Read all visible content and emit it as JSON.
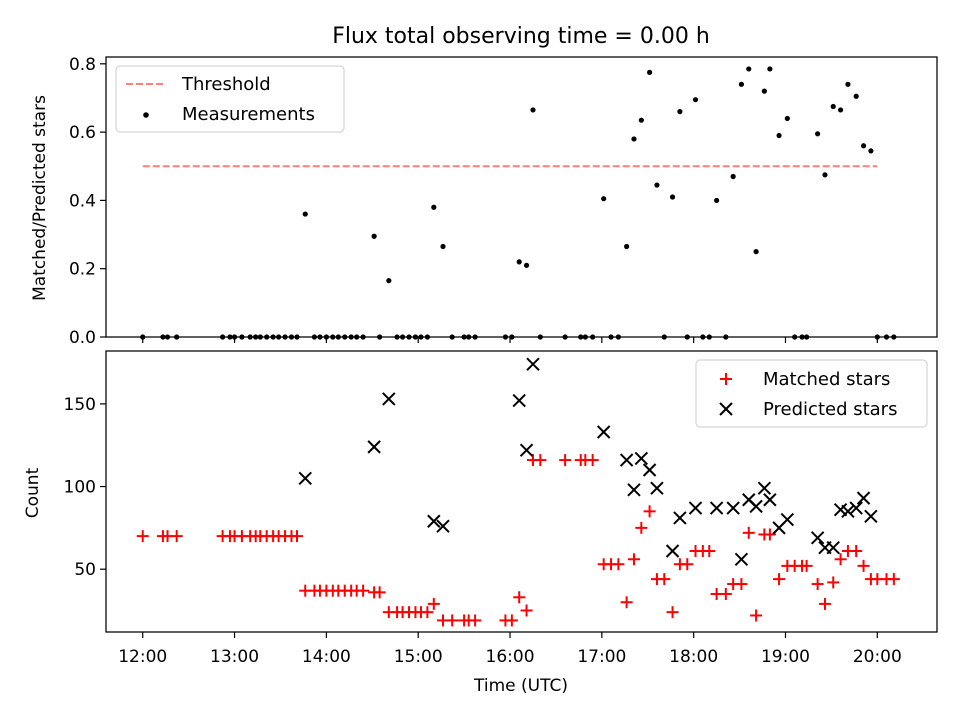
{
  "chart_data": [
    {
      "type": "scatter",
      "title": "Flux total observing time = 0.00 h",
      "xlabel": "",
      "ylabel": "Matched/Predicted stars",
      "ylim": [
        0,
        0.82
      ],
      "yticks": [
        "0.0",
        "0.2",
        "0.4",
        "0.6",
        "0.8"
      ],
      "legend_position": "top-left",
      "threshold": {
        "name": "Threshold",
        "value": 0.5,
        "x_start": 12.0,
        "x_end": 20.0,
        "color": "#ff7f7f",
        "style": "dashed"
      },
      "series": [
        {
          "name": "Measurements",
          "color": "#000000",
          "marker": "dot",
          "x": [
            12.0,
            12.22,
            12.27,
            12.37,
            12.87,
            12.95,
            13.0,
            13.08,
            13.17,
            13.23,
            13.28,
            13.35,
            13.42,
            13.48,
            13.55,
            13.62,
            13.68,
            13.77,
            13.87,
            13.93,
            14.0,
            14.07,
            14.13,
            14.2,
            14.27,
            14.33,
            14.4,
            14.52,
            14.58,
            14.68,
            14.77,
            14.83,
            14.9,
            14.97,
            15.03,
            15.1,
            15.17,
            15.27,
            15.37,
            15.5,
            15.55,
            15.62,
            15.95,
            16.02,
            16.1,
            16.18,
            16.25,
            16.33,
            16.6,
            16.77,
            16.82,
            16.9,
            17.02,
            17.1,
            17.18,
            17.27,
            17.35,
            17.43,
            17.52,
            17.6,
            17.68,
            17.77,
            17.85,
            17.93,
            18.02,
            18.1,
            18.17,
            18.25,
            18.35,
            18.43,
            18.52,
            18.6,
            18.68,
            18.77,
            18.83,
            18.93,
            19.02,
            19.1,
            19.18,
            19.23,
            19.35,
            19.43,
            19.52,
            19.6,
            19.68,
            19.77,
            19.85,
            19.93,
            20.0,
            20.1,
            20.18
          ],
          "y": [
            0,
            0,
            0,
            0,
            0,
            0,
            0,
            0,
            0,
            0,
            0,
            0,
            0,
            0,
            0,
            0,
            0,
            0.36,
            0,
            0,
            0,
            0,
            0,
            0,
            0,
            0,
            0,
            0.295,
            0,
            0.165,
            0,
            0,
            0,
            0,
            0,
            0,
            0.38,
            0.265,
            0,
            0,
            0,
            0,
            0,
            0,
            0.22,
            0.21,
            0.665,
            0,
            0,
            0,
            0,
            0,
            0.405,
            0,
            0,
            0.265,
            0.58,
            0.635,
            0.775,
            0.445,
            0,
            0.41,
            0.66,
            0,
            0.695,
            0,
            0,
            0.4,
            0,
            0.47,
            0.74,
            0.785,
            0.25,
            0.72,
            0.785,
            0.59,
            0.64,
            0,
            0,
            0,
            0.595,
            0.475,
            0.675,
            0.665,
            0.74,
            0.705,
            0.56,
            0.545,
            0,
            0,
            0
          ]
        }
      ]
    },
    {
      "type": "scatter",
      "title": "",
      "xlabel": "Time (UTC)",
      "ylabel": "Count",
      "xlim": [
        11.6,
        20.65
      ],
      "ylim": [
        12,
        182
      ],
      "yticks": [
        "50",
        "100",
        "150"
      ],
      "x_tick_labels": [
        "12:00",
        "13:00",
        "14:00",
        "15:00",
        "16:00",
        "17:00",
        "18:00",
        "19:00",
        "20:00"
      ],
      "legend_position": "top-right",
      "series": [
        {
          "name": "Matched stars",
          "color": "#ff0000",
          "marker": "plus",
          "x": [
            12.0,
            12.22,
            12.27,
            12.37,
            12.87,
            12.95,
            13.0,
            13.08,
            13.17,
            13.23,
            13.28,
            13.35,
            13.42,
            13.48,
            13.55,
            13.62,
            13.68,
            13.77,
            13.87,
            13.93,
            14.0,
            14.07,
            14.13,
            14.2,
            14.27,
            14.33,
            14.4,
            14.52,
            14.58,
            14.68,
            14.77,
            14.83,
            14.9,
            14.97,
            15.03,
            15.1,
            15.17,
            15.27,
            15.37,
            15.5,
            15.55,
            15.62,
            15.95,
            16.02,
            16.1,
            16.18,
            16.25,
            16.33,
            16.6,
            16.77,
            16.82,
            16.9,
            17.02,
            17.1,
            17.18,
            17.27,
            17.35,
            17.43,
            17.52,
            17.6,
            17.68,
            17.77,
            17.85,
            17.93,
            18.02,
            18.1,
            18.17,
            18.25,
            18.35,
            18.43,
            18.52,
            18.6,
            18.68,
            18.77,
            18.83,
            18.93,
            19.02,
            19.1,
            19.18,
            19.23,
            19.35,
            19.43,
            19.52,
            19.6,
            19.68,
            19.77,
            19.85,
            19.93,
            20.0,
            20.1,
            20.18
          ],
          "y": [
            70,
            70,
            70,
            70,
            70,
            70,
            70,
            70,
            70,
            70,
            70,
            70,
            70,
            70,
            70,
            70,
            70,
            37,
            37,
            37,
            37,
            37,
            37,
            37,
            37,
            37,
            37,
            36,
            36,
            24,
            24,
            24,
            24,
            24,
            24,
            24,
            29,
            19,
            19,
            19,
            19,
            19,
            19,
            19,
            33,
            25,
            116,
            116,
            116,
            116,
            116,
            116,
            53,
            53,
            53,
            30,
            56,
            75,
            85,
            44,
            44,
            24,
            53,
            53,
            61,
            61,
            61,
            35,
            35,
            41,
            41,
            72,
            22,
            71,
            71,
            44,
            52,
            52,
            52,
            52,
            41,
            29,
            42,
            56,
            61,
            61,
            52,
            44,
            44,
            44,
            44
          ]
        },
        {
          "name": "Predicted stars",
          "color": "#000000",
          "marker": "x",
          "x": [
            13.77,
            14.52,
            14.68,
            15.17,
            15.27,
            16.1,
            16.18,
            16.25,
            17.02,
            17.27,
            17.35,
            17.43,
            17.52,
            17.6,
            17.77,
            17.85,
            18.02,
            18.25,
            18.43,
            18.52,
            18.6,
            18.68,
            18.77,
            18.83,
            18.93,
            19.02,
            19.35,
            19.43,
            19.52,
            19.6,
            19.68,
            19.77,
            19.85,
            19.93
          ],
          "y": [
            105,
            124,
            153,
            79,
            76,
            152,
            122,
            174,
            133,
            116,
            98,
            117,
            110,
            99,
            61,
            81,
            87,
            87,
            87,
            56,
            92,
            88,
            99,
            92,
            75,
            80,
            69,
            63,
            63,
            86,
            85,
            87,
            93,
            82
          ]
        }
      ]
    }
  ]
}
